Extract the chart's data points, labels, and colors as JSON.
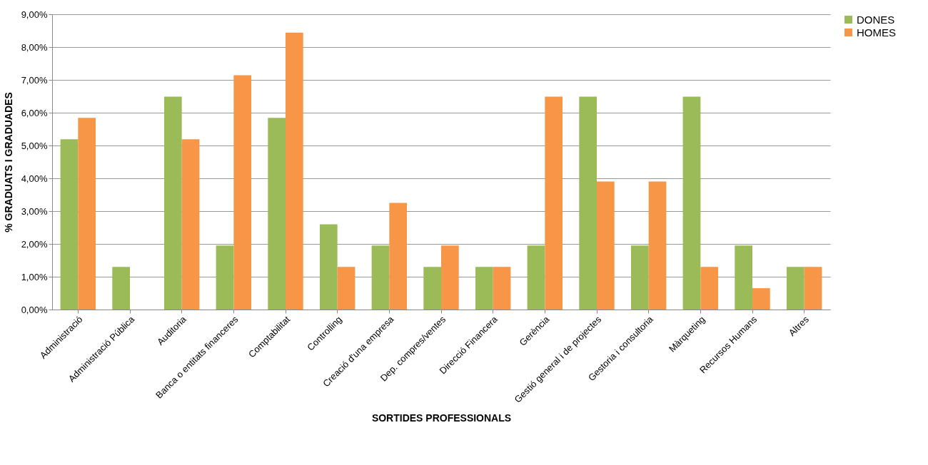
{
  "chart_data": {
    "type": "bar",
    "xlabel": "SORTIDES PROFESSIONALS",
    "ylabel": "% GRADUATS I GRADUADES",
    "categories": [
      "Administració",
      "Administració Pública",
      "Auditoria",
      "Banca o entitats financeres",
      "Comptabilitat",
      "Controlling",
      "Creació d'una empresa",
      "Dep. compres/ventes",
      "Direcció Financera",
      "Gerència",
      "Gestió general i de projectes",
      "Gestoria i consultoria",
      "Màrqueting",
      "Recursos Humans",
      "Altres"
    ],
    "series": [
      {
        "name": "DONES",
        "color": "#9bbb59",
        "values": [
          5.19,
          1.3,
          6.49,
          1.95,
          5.84,
          2.6,
          1.95,
          1.3,
          1.3,
          1.95,
          6.49,
          1.95,
          6.49,
          1.95,
          1.3
        ]
      },
      {
        "name": "HOMES",
        "color": "#f79646",
        "values": [
          5.84,
          0,
          5.19,
          7.14,
          8.44,
          1.3,
          3.25,
          1.95,
          1.3,
          6.49,
          3.9,
          3.9,
          1.3,
          0.65,
          1.3
        ]
      }
    ],
    "ylim": [
      0,
      9
    ],
    "yticks": [
      {
        "value": 0,
        "label": "0,00%"
      },
      {
        "value": 1,
        "label": "1,00%"
      },
      {
        "value": 2,
        "label": "2,00%"
      },
      {
        "value": 3,
        "label": "3,00%"
      },
      {
        "value": 4,
        "label": "4,00%"
      },
      {
        "value": 5,
        "label": "5,00%"
      },
      {
        "value": 6,
        "label": "6,00%"
      },
      {
        "value": 7,
        "label": "7,00%"
      },
      {
        "value": 8,
        "label": "8,00%"
      },
      {
        "value": 9,
        "label": "9,00%"
      }
    ],
    "grid": "y",
    "legend": "right"
  }
}
